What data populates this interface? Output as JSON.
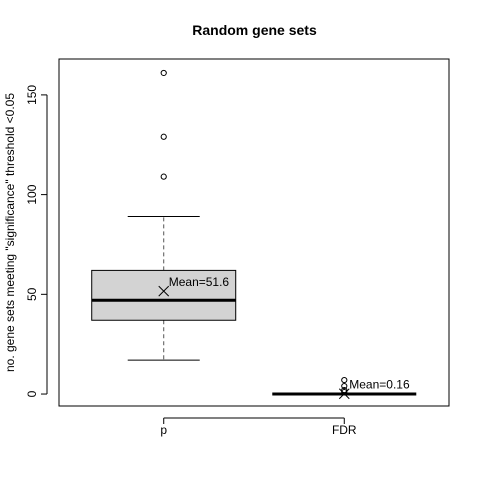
{
  "chart_data": {
    "type": "boxplot",
    "title": "Random gene sets",
    "xlabel": "",
    "ylabel": "no. gene sets meeting \"significance\" threshold <0.05",
    "ylim": [
      -6,
      168
    ],
    "yticks": [
      0,
      50,
      100,
      150
    ],
    "categories": [
      "p",
      "FDR"
    ],
    "boxes": [
      {
        "category": "p",
        "whisker_low": 17,
        "q1": 37,
        "median": 47,
        "q3": 62,
        "whisker_high": 89,
        "outliers": [
          109,
          129,
          161
        ],
        "mean": 51.6,
        "mean_label": "Mean=51.6"
      },
      {
        "category": "FDR",
        "whisker_low": 0,
        "q1": 0,
        "median": 0,
        "q3": 0,
        "whisker_high": 0,
        "outliers": [
          1,
          2,
          4,
          7
        ],
        "mean": 0.16,
        "mean_label": "Mean=0.16"
      }
    ],
    "box_fill": "#d3d3d3",
    "grid": false,
    "legend": "none"
  }
}
